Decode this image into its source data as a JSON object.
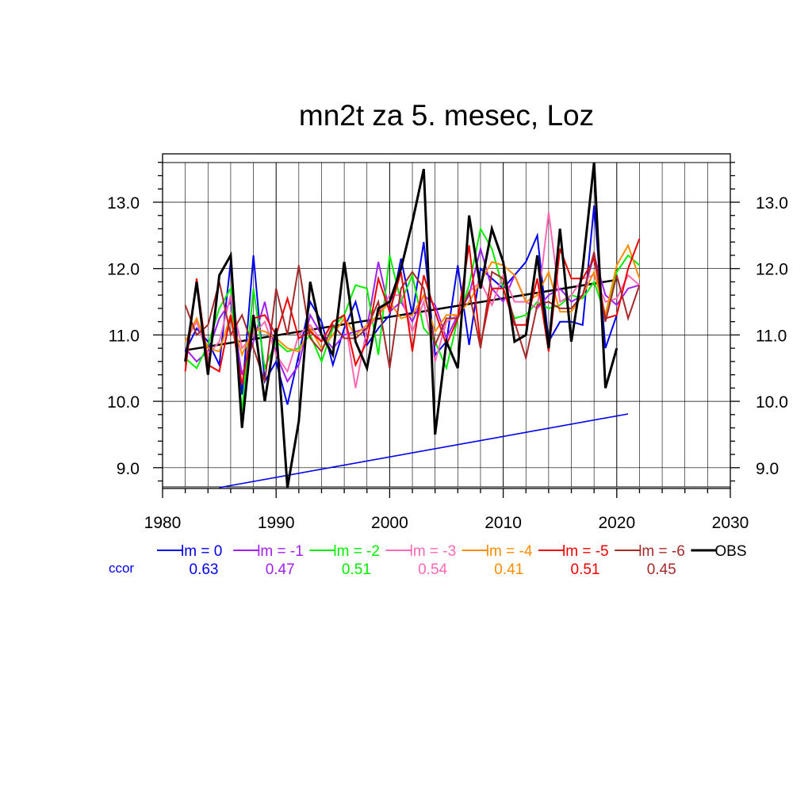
{
  "chart_data": {
    "type": "line",
    "title": "mn2t za 5. mesec, Loz",
    "xlabel": "",
    "ylabel": "",
    "xlim": [
      1980,
      2030
    ],
    "ylim": [
      8.7,
      13.6
    ],
    "x_ticks": [
      "1980",
      "1990",
      "2000",
      "2010",
      "2020",
      "2030"
    ],
    "x_tick_values": [
      1980,
      1990,
      2000,
      2010,
      2020,
      2030
    ],
    "y_ticks": [
      "9.0",
      "10.0",
      "11.0",
      "12.0",
      "13.0"
    ],
    "y_tick_values": [
      9,
      10,
      11,
      12,
      13
    ],
    "grid": true,
    "legend": "bottom",
    "ccor_label": "ccor",
    "x": [
      1982,
      1983,
      1984,
      1985,
      1986,
      1987,
      1988,
      1989,
      1990,
      1991,
      1992,
      1993,
      1994,
      1995,
      1996,
      1997,
      1998,
      1999,
      2000,
      2001,
      2002,
      2003,
      2004,
      2005,
      2006,
      2007,
      2008,
      2009,
      2010,
      2011,
      2012,
      2013,
      2014,
      2015,
      2016,
      2017,
      2018,
      2019,
      2020,
      2021,
      2022
    ],
    "series": [
      {
        "name": "lm = 0",
        "color": "#0000ee",
        "ccor": "0.63",
        "values": [
          10.75,
          11.1,
          10.9,
          10.55,
          12.1,
          10.1,
          12.2,
          10.3,
          10.6,
          9.95,
          10.7,
          11.5,
          11.2,
          10.55,
          11.1,
          11.5,
          10.85,
          11.1,
          11.3,
          12.15,
          11.3,
          12.4,
          10.7,
          10.9,
          12.05,
          10.85,
          12.0,
          11.85,
          11.7,
          11.9,
          12.1,
          12.5,
          10.9,
          11.2,
          11.2,
          11.15,
          12.95,
          10.8,
          11.3,
          null,
          null
        ]
      },
      {
        "name": "lm = -1",
        "color": "#a020f0",
        "ccor": "0.47",
        "values": [
          10.8,
          10.6,
          10.75,
          11.25,
          11.5,
          10.4,
          10.9,
          11.5,
          10.7,
          10.3,
          10.55,
          11.3,
          11.0,
          10.8,
          11.0,
          11.05,
          11.1,
          12.1,
          11.35,
          11.5,
          11.2,
          11.6,
          11.45,
          10.95,
          11.3,
          11.6,
          12.3,
          11.7,
          11.5,
          11.9,
          11.5,
          11.4,
          11.6,
          11.7,
          11.5,
          11.6,
          12.2,
          11.6,
          11.45,
          11.7,
          11.75
        ]
      },
      {
        "name": "lm = -2",
        "color": "#00ee00",
        "ccor": "0.51",
        "values": [
          10.65,
          10.5,
          10.85,
          11.4,
          11.7,
          9.85,
          11.7,
          10.5,
          10.9,
          10.75,
          10.8,
          11.0,
          10.6,
          11.1,
          11.3,
          11.75,
          11.7,
          10.7,
          12.2,
          11.5,
          11.9,
          11.1,
          10.9,
          10.5,
          11.25,
          11.75,
          12.6,
          12.3,
          11.7,
          11.25,
          11.3,
          11.5,
          11.4,
          11.45,
          11.6,
          11.55,
          11.8,
          11.3,
          11.95,
          12.2,
          12.05
        ]
      },
      {
        "name": "lm = -3",
        "color": "#ff69b4",
        "ccor": "0.54",
        "values": [
          10.9,
          11.2,
          10.7,
          10.9,
          11.6,
          10.8,
          11.0,
          11.2,
          10.7,
          10.45,
          11.0,
          11.15,
          10.9,
          11.2,
          11.3,
          10.2,
          11.1,
          11.3,
          11.6,
          11.6,
          11.05,
          11.5,
          10.6,
          11.2,
          11.3,
          11.65,
          11.8,
          11.45,
          11.9,
          11.5,
          11.5,
          11.4,
          12.85,
          11.5,
          11.6,
          11.85,
          11.9,
          11.5,
          11.55,
          11.9,
          11.75
        ]
      },
      {
        "name": "lm = -4",
        "color": "#ff8c00",
        "ccor": "0.41",
        "values": [
          10.9,
          11.25,
          10.8,
          10.75,
          11.3,
          10.7,
          11.1,
          11.05,
          10.95,
          10.8,
          10.75,
          11.1,
          10.8,
          11.0,
          11.25,
          11.0,
          11.15,
          11.3,
          11.5,
          11.25,
          11.3,
          11.6,
          11.05,
          11.3,
          11.3,
          11.5,
          11.8,
          12.1,
          12.05,
          11.9,
          11.5,
          11.6,
          11.95,
          11.35,
          11.35,
          11.6,
          11.95,
          11.3,
          12.05,
          12.35,
          11.85
        ]
      },
      {
        "name": "lm = -5",
        "color": "#ee0000",
        "ccor": "0.51",
        "values": [
          10.45,
          11.85,
          10.55,
          10.45,
          11.3,
          10.25,
          11.25,
          11.3,
          11.0,
          11.55,
          10.95,
          11.05,
          10.9,
          11.2,
          11.3,
          10.55,
          10.9,
          11.85,
          11.35,
          11.95,
          10.75,
          11.9,
          11.35,
          10.85,
          11.25,
          12.35,
          10.85,
          11.7,
          11.7,
          11.15,
          11.15,
          11.85,
          10.75,
          12.3,
          11.85,
          11.85,
          12.15,
          11.25,
          11.3,
          12.0,
          12.45
        ]
      },
      {
        "name": "lm = -6",
        "color": "#a52a2a",
        "ccor": "0.45",
        "values": [
          11.45,
          11.0,
          11.15,
          11.8,
          11.0,
          11.3,
          10.8,
          10.3,
          11.7,
          11.0,
          12.05,
          10.95,
          10.75,
          11.15,
          10.95,
          10.95,
          11.1,
          11.5,
          10.5,
          11.7,
          11.95,
          11.7,
          10.85,
          11.25,
          11.25,
          11.65,
          10.8,
          11.95,
          11.85,
          11.2,
          10.65,
          11.45,
          11.5,
          11.4,
          11.4,
          11.6,
          12.25,
          11.2,
          11.9,
          11.25,
          11.75
        ]
      },
      {
        "name": "OBS",
        "color": "#000000",
        "ccor": "",
        "values": [
          10.6,
          11.8,
          10.4,
          11.9,
          12.2,
          9.6,
          11.3,
          10.0,
          11.1,
          8.7,
          9.7,
          11.8,
          11.0,
          10.7,
          12.1,
          10.9,
          10.5,
          11.4,
          11.5,
          12.0,
          12.7,
          13.5,
          9.5,
          10.9,
          10.5,
          12.8,
          11.7,
          12.6,
          12.1,
          10.9,
          11.0,
          12.2,
          10.8,
          12.6,
          10.9,
          12.0,
          13.6,
          10.2,
          10.8,
          null,
          null
        ]
      }
    ],
    "trends": [
      {
        "name": "OBS trend",
        "color": "#000000",
        "x": [
          1982,
          2020
        ],
        "values": [
          10.77,
          11.83
        ]
      },
      {
        "name": "ccor trend",
        "color": "#0000ee",
        "x": [
          1985,
          2021
        ],
        "values": [
          8.7,
          9.81
        ]
      }
    ]
  }
}
